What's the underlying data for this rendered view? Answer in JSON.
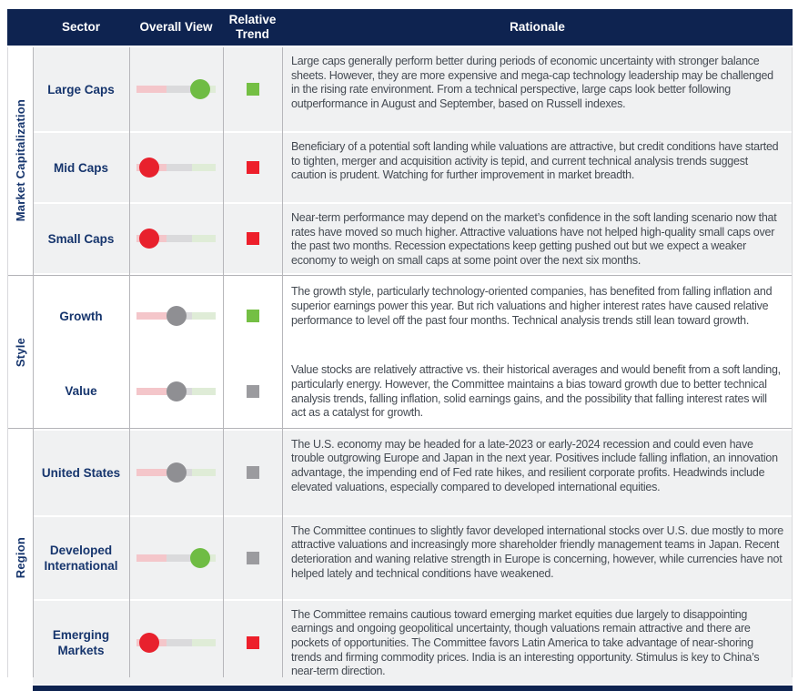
{
  "header": {
    "sector": "Sector",
    "overall_view": "Overall View",
    "relative_trend": "Relative Trend",
    "rationale": "Rationale"
  },
  "colors": {
    "header_bg": "#0e2350",
    "navy_text": "#16356d",
    "body_text": "#444a52",
    "row_bg_gray": "#f0f1f2",
    "grid_line": "#b7b7bb",
    "track_red": "#f4c6ca",
    "track_gray": "#dadadc",
    "track_green": "#dfecd7",
    "dot_red": "#e8212d",
    "dot_gray": "#8f8f93",
    "dot_green": "#6fbc44",
    "trend_red": "#ed1f2b",
    "trend_gray": "#9b9b9f",
    "trend_green": "#74bf44"
  },
  "sections": [
    {
      "group": "Market Capitalization",
      "shade": "gray",
      "rows": [
        {
          "sector": "Large Caps",
          "dot": "green",
          "dot_position_pct": 80,
          "trend": "green",
          "rationale": "Large caps generally perform better during periods of economic uncertainty with stronger balance sheets. However, they are more expensive and mega-cap technology leadership may be challenged in the rising rate environment. From a technical perspective, large caps look better following outperformance in August and September, based on Russell indexes."
        },
        {
          "sector": "Mid Caps",
          "dot": "red",
          "dot_position_pct": 16,
          "trend": "red",
          "rationale": "Beneficiary of a potential soft landing while valuations are attractive, but credit conditions have started to tighten, merger and acquisition activity is tepid, and current technical analysis trends suggest caution is prudent. Watching for further improvement in market breadth."
        },
        {
          "sector": "Small Caps",
          "dot": "red",
          "dot_position_pct": 16,
          "trend": "red",
          "rationale": "Near-term performance may depend on the market’s confidence in the soft landing scenario now that rates have moved so much higher. Attractive valuations have not helped high-quality small caps over the past two months. Recession expectations keep getting pushed out but we expect a weaker economy to weigh on small caps at some point over the next six months."
        }
      ]
    },
    {
      "group": "Style",
      "shade": "white",
      "rows": [
        {
          "sector": "Growth",
          "dot": "gray",
          "dot_position_pct": 50,
          "trend": "green",
          "rationale": "The growth style, particularly technology-oriented companies, has benefited from falling inflation and superior earnings power this year. But rich valuations and higher interest rates have caused relative performance to level off the past four months. Technical analysis trends still lean toward growth."
        },
        {
          "sector": "Value",
          "dot": "gray",
          "dot_position_pct": 50,
          "trend": "gray",
          "rationale": "Value stocks are relatively attractive vs. their historical averages and would benefit from a soft landing, particularly energy. However, the Committee maintains a bias toward growth due to better technical analysis trends, falling inflation, solid earnings gains, and the possibility that falling interest rates will act as a catalyst for growth."
        }
      ]
    },
    {
      "group": "Region",
      "shade": "gray",
      "rows": [
        {
          "sector": "United States",
          "dot": "gray",
          "dot_position_pct": 50,
          "trend": "gray",
          "rationale": "The U.S. economy may be headed for a late-2023 or early-2024 recession and could even have trouble outgrowing Europe and Japan in the next year. Positives include falling inflation, an innovation advantage, the impending end of Fed rate hikes, and resilient corporate profits. Headwinds include elevated valuations, especially compared to developed international equities."
        },
        {
          "sector": "Developed International",
          "dot": "green",
          "dot_position_pct": 80,
          "trend": "gray",
          "rationale": "The Committee continues to slightly favor developed international stocks over U.S. due mostly to more attractive valuations and increasingly more shareholder friendly management teams in Japan. Recent deterioration and waning relative strength in Europe is concerning, however, while currencies have not helped lately and technical conditions have weakened."
        },
        {
          "sector": "Emerging Markets",
          "dot": "red",
          "dot_position_pct": 16,
          "trend": "red",
          "rationale": "The Committee remains cautious toward emerging market equities due largely to disappointing earnings and ongoing geopolitical uncertainty, though valuations remain attractive and there are pockets of opportunities. The Committee favors Latin America to take advantage of near-shoring trends and firming commodity prices. India is an interesting opportunity. Stimulus is key to China’s near-term direction."
        }
      ]
    }
  ]
}
